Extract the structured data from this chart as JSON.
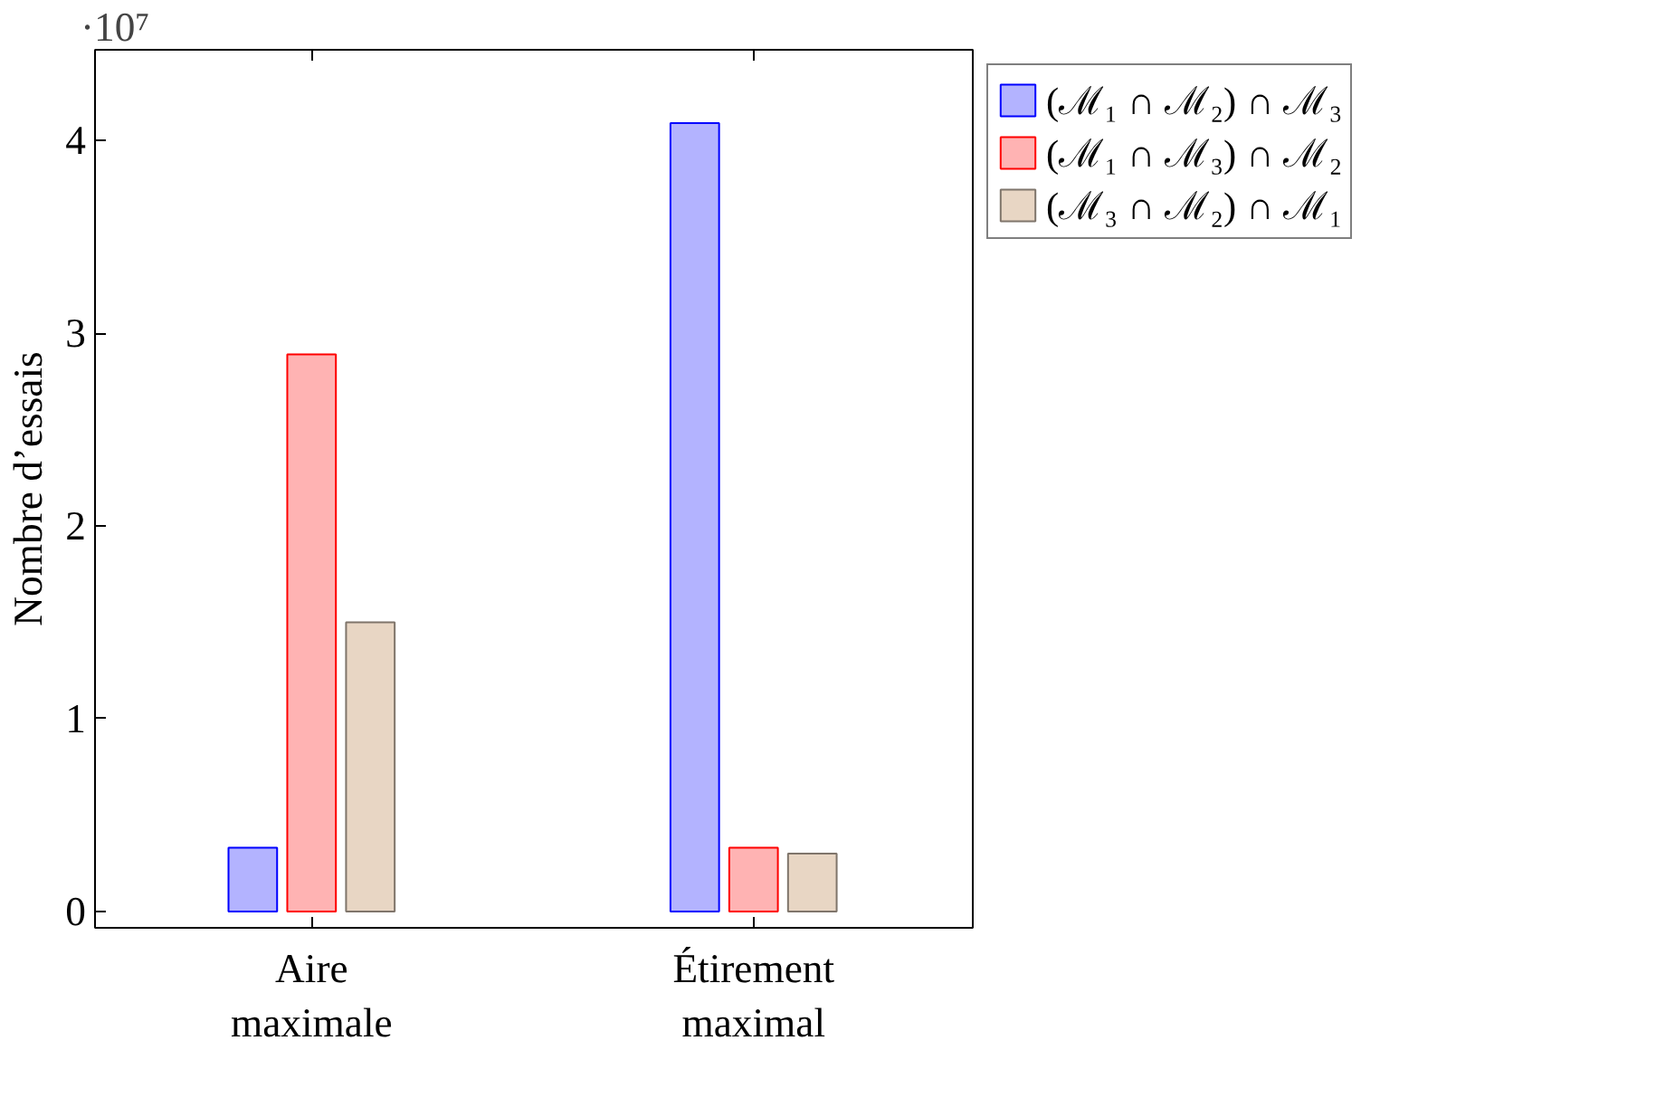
{
  "chart_data": {
    "type": "bar",
    "ylabel": "Nombre d’essais",
    "categories": [
      "Aire maximale",
      "Étirement maximal"
    ],
    "series": [
      {
        "name": "(ℳ₁ ∩ ℳ₂) ∩ ℳ₃",
        "color": "#b3b3ff",
        "values": [
          0.33,
          4.09
        ]
      },
      {
        "name": "(ℳ₁ ∩ ℳ₃) ∩ ℳ₂",
        "color": "#ffb3b3",
        "values": [
          2.89,
          0.33
        ]
      },
      {
        "name": "(ℳ₃ ∩ ℳ₂) ∩ ℳ₁",
        "color": "#e8d6c4",
        "values": [
          1.5,
          0.3
        ]
      }
    ],
    "ylim": [
      -0.085,
      4.47
    ],
    "yticks": [
      0,
      1,
      2,
      3,
      4
    ],
    "annotations": [
      "·10⁷"
    ],
    "grid": false,
    "legend": "top right"
  }
}
